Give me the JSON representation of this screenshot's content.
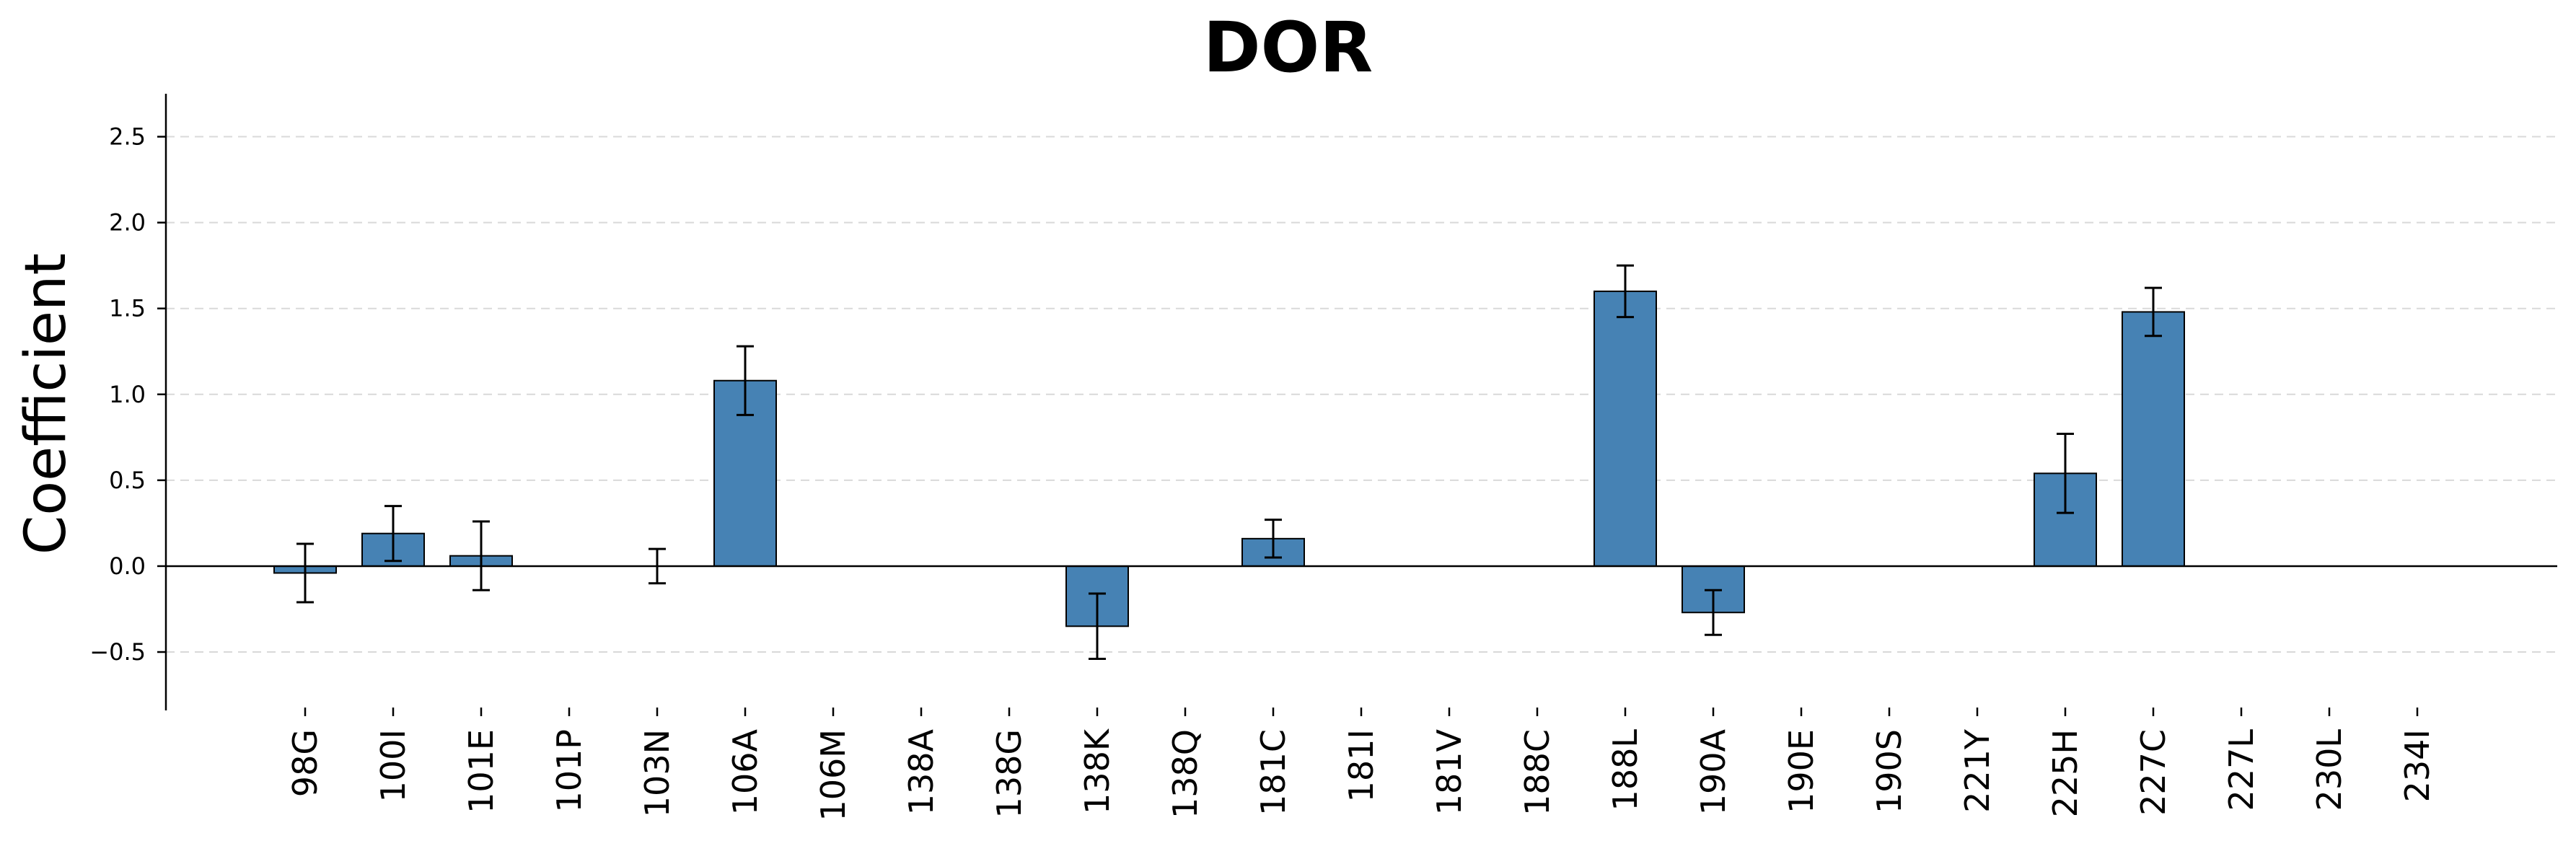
{
  "chart_data": {
    "type": "bar",
    "title": "DOR",
    "xlabel": "",
    "ylabel": "Coefficient",
    "ylim": [
      -0.84,
      2.75
    ],
    "yticks": [
      -0.5,
      0.0,
      0.5,
      1.0,
      1.5,
      2.0,
      2.5
    ],
    "ytick_labels": [
      "−0.5",
      "0.0",
      "0.5",
      "1.0",
      "1.5",
      "2.0",
      "2.5"
    ],
    "grid": "y-dashed",
    "bar_color": "#4682b4",
    "categories": [
      "98G",
      "100I",
      "101E",
      "101P",
      "103N",
      "106A",
      "106M",
      "138A",
      "138G",
      "138K",
      "138Q",
      "181C",
      "181I",
      "181V",
      "188C",
      "188L",
      "190A",
      "190E",
      "190S",
      "221Y",
      "225H",
      "227C",
      "227L",
      "230L",
      "234I"
    ],
    "values": [
      -0.04,
      0.19,
      0.06,
      0.0,
      0.0,
      1.08,
      0.0,
      0.0,
      0.0,
      -0.35,
      0.0,
      0.16,
      0.0,
      0.0,
      0.0,
      1.6,
      -0.27,
      0.0,
      0.0,
      0.0,
      0.54,
      1.48,
      0.0,
      0.0,
      0.0
    ],
    "errors": [
      0.17,
      0.16,
      0.2,
      0.0,
      0.1,
      0.2,
      0.0,
      0.0,
      0.0,
      0.19,
      0.0,
      0.11,
      0.0,
      0.0,
      0.0,
      0.15,
      0.13,
      0.0,
      0.0,
      0.0,
      0.23,
      0.14,
      0.0,
      0.0,
      0.0
    ]
  }
}
